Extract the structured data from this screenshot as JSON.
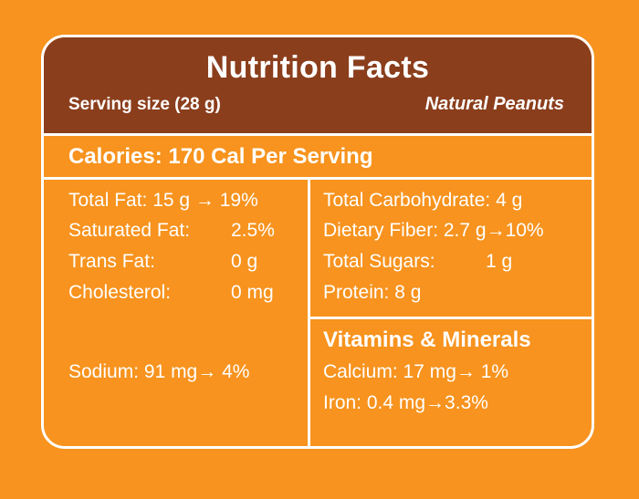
{
  "header": {
    "title": "Nutrition Facts",
    "serving": "Serving size (28 g)",
    "product": "Natural Peanuts"
  },
  "calories": "Calories: 170 Cal Per Serving",
  "left_column": {
    "total_fat": "Total Fat: 15 g → 19%",
    "saturated_fat_label": "Saturated Fat:",
    "saturated_fat_value": "2.5%",
    "trans_fat_label": "Trans Fat:",
    "trans_fat_value": "0 g",
    "cholesterol_label": "Cholesterol:",
    "cholesterol_value": "0 mg",
    "sodium": "Sodium:  91 mg→ 4%"
  },
  "right_column": {
    "total_carbohydrate": "Total Carbohydrate: 4 g",
    "dietary_fiber": "Dietary Fiber:  2.7 g→10%",
    "total_sugars_label": "Total Sugars:",
    "total_sugars_value": "1 g",
    "protein": "Protein: 8 g"
  },
  "vitamins": {
    "heading": "Vitamins & Minerals",
    "calcium": "Calcium: 17 mg→ 1%",
    "iron": "Iron: 0.4 mg→3.3%"
  },
  "colors": {
    "background": "#F7931E",
    "header": "#8B3E1C",
    "text": "#FFFFFF"
  }
}
